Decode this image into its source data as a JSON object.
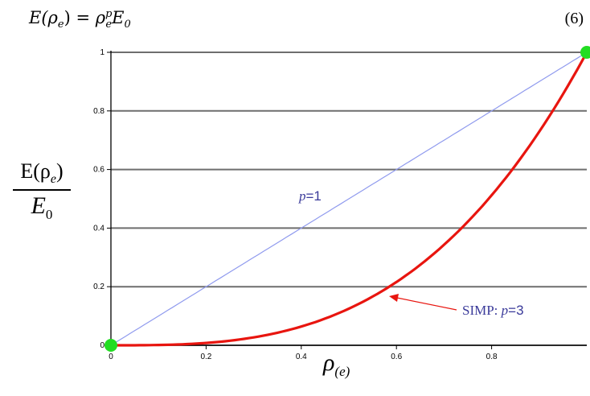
{
  "equation": {
    "lhs": "E(ρ",
    "lhs_sub": "e",
    "rhs_base": "ρ",
    "rhs_sup": "p",
    "rhs_sub": "e",
    "rhs_tail": "E",
    "rhs_tail_sub": "0",
    "number": "(6)"
  },
  "y_label": {
    "numerator": "E(ρ",
    "numerator_sub": "e",
    "denominator": "E",
    "denominator_sub": "0"
  },
  "x_label": {
    "symbol": "ρ",
    "sub": "(e)"
  },
  "chart_data": {
    "type": "line",
    "x_ticks": [
      "0",
      "0.2",
      "0.4",
      "0.6",
      "0.8"
    ],
    "y_ticks": [
      "0",
      "0.2",
      "0.4",
      "0.6",
      "0.8",
      "1"
    ],
    "xlim": [
      0,
      1
    ],
    "ylim": [
      0,
      1
    ],
    "grid": "horizontal",
    "series": [
      {
        "name": "p=1",
        "label_prefix": "p",
        "label_value": "=1",
        "color": "#8f9aee",
        "exponent": 1,
        "x": [
          0,
          0.2,
          0.4,
          0.6,
          0.8,
          1.0
        ],
        "y": [
          0,
          0.2,
          0.4,
          0.6,
          0.8,
          1.0
        ]
      },
      {
        "name": "SIMP: p=3",
        "label_prefix": "SIMP: ",
        "label_p": "p",
        "label_value": "=3",
        "color": "#e8150f",
        "exponent": 3,
        "x": [
          0,
          0.1,
          0.2,
          0.3,
          0.4,
          0.5,
          0.6,
          0.7,
          0.8,
          0.9,
          1.0
        ],
        "y": [
          0,
          0.001,
          0.008,
          0.027,
          0.064,
          0.125,
          0.216,
          0.343,
          0.512,
          0.729,
          1.0
        ]
      }
    ],
    "markers": [
      {
        "x": 0,
        "y": 0,
        "color": "#22dd22"
      },
      {
        "x": 1,
        "y": 1,
        "color": "#22dd22"
      }
    ],
    "label_color": "#3a3a9a",
    "arrow_color": "#e8150f"
  }
}
